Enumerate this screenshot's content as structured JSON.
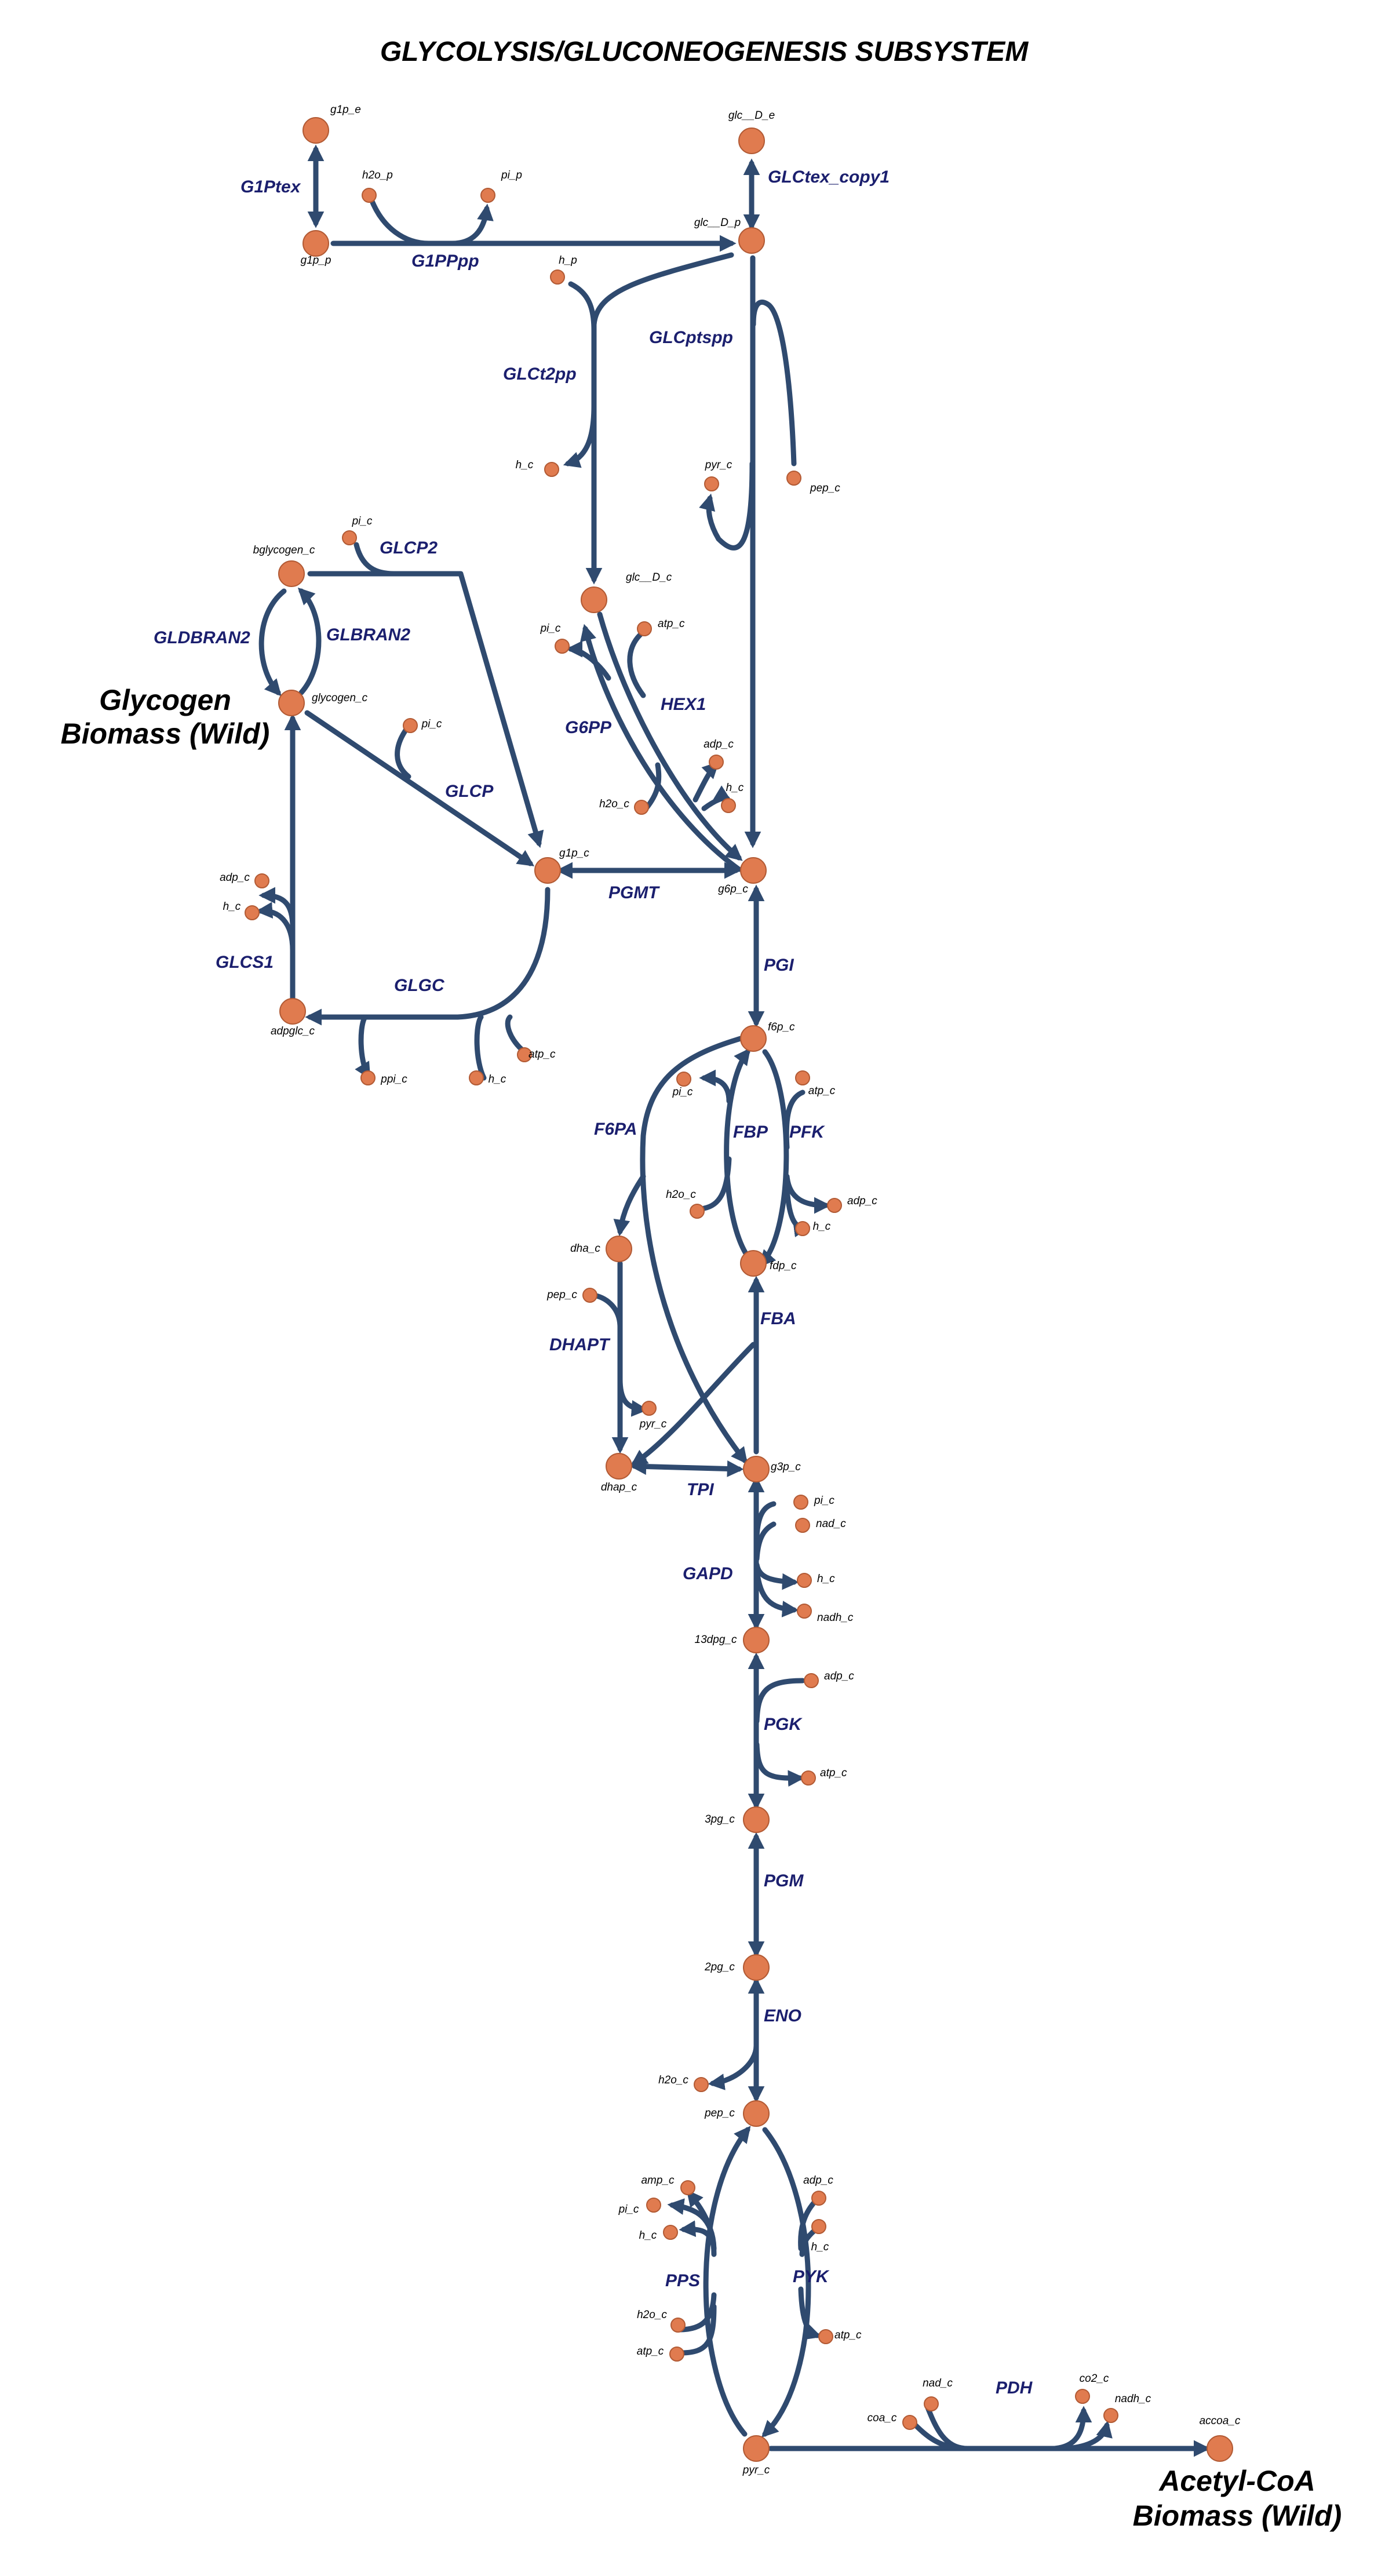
{
  "title": "GLYCOLYSIS/GLUCONEOGENESIS SUBSYSTEM",
  "annotations": {
    "glycogen_line1": "Glycogen",
    "glycogen_line2": "Biomass (Wild)",
    "accoa_line1": "Acetyl-CoA",
    "accoa_line2": "Biomass (Wild)"
  },
  "colors": {
    "edge": "#2f4a6f",
    "node": "#e07b4f",
    "reaction_label": "#1b1f6e"
  },
  "metabolites": {
    "g1p_e": "g1p_e",
    "g1p_p": "g1p_p",
    "h2o_p": "h2o_p",
    "pi_p": "pi_p",
    "glc_D_e": "glc__D_e",
    "glc_D_p": "glc__D_p",
    "h_p": "h_p",
    "h_c_1": "h_c",
    "pyr_c_1": "pyr_c",
    "pep_c_1": "pep_c",
    "pi_c_1": "pi_c",
    "bglycogen_c": "bglycogen_c",
    "glycogen_c": "glycogen_c",
    "pi_c_2": "pi_c",
    "glc_D_c": "glc__D_c",
    "pi_c_3": "pi_c",
    "atp_c_1": "atp_c",
    "adp_c_1": "adp_c",
    "h_c_2": "h_c",
    "h2o_c_1": "h2o_c",
    "g1p_c": "g1p_c",
    "g6p_c": "g6p_c",
    "adp_c_2": "adp_c",
    "h_c_3": "h_c",
    "adpglc_c": "adpglc_c",
    "ppi_c": "ppi_c",
    "h_c_4": "h_c",
    "atp_c_2": "atp_c",
    "f6p_c": "f6p_c",
    "pi_c_4": "pi_c",
    "atp_c_3": "atp_c",
    "h2o_c_2": "h2o_c",
    "adp_c_3": "adp_c",
    "h_c_5": "h_c",
    "dha_c": "dha_c",
    "fdp_c": "fdp_c",
    "pep_c_2": "pep_c",
    "pyr_c_2": "pyr_c",
    "dhap_c": "dhap_c",
    "g3p_c": "g3p_c",
    "pi_c_5": "pi_c",
    "nad_c_1": "nad_c",
    "h_c_6": "h_c",
    "nadh_c_1": "nadh_c",
    "13dpg_c": "13dpg_c",
    "adp_c_4": "adp_c",
    "atp_c_4": "atp_c",
    "3pg_c": "3pg_c",
    "2pg_c": "2pg_c",
    "h2o_c_3": "h2o_c",
    "pep_c_3": "pep_c",
    "amp_c": "amp_c",
    "pi_c_6": "pi_c",
    "h_c_7": "h_c",
    "adp_c_5": "adp_c",
    "h_c_8": "h_c",
    "h2o_c_4": "h2o_c",
    "atp_c_5": "atp_c",
    "atp_c_6": "atp_c",
    "pyr_c_3": "pyr_c",
    "nad_c_2": "nad_c",
    "coa_c": "coa_c",
    "co2_c": "co2_c",
    "nadh_c_2": "nadh_c",
    "accoa_c": "accoa_c"
  },
  "reactions": {
    "G1Ptex": "G1Ptex",
    "G1PPpp": "G1PPpp",
    "GLCtex_copy1": "GLCtex_copy1",
    "GLCptspp": "GLCptspp",
    "GLCt2pp": "GLCt2pp",
    "GLCP2": "GLCP2",
    "GLDBRAN2": "GLDBRAN2",
    "GLBRAN2": "GLBRAN2",
    "HEX1": "HEX1",
    "G6PP": "G6PP",
    "GLCP": "GLCP",
    "PGMT": "PGMT",
    "GLCS1": "GLCS1",
    "GLGC": "GLGC",
    "PGI": "PGI",
    "F6PA": "F6PA",
    "FBP": "FBP",
    "PFK": "PFK",
    "DHAPT": "DHAPT",
    "FBA": "FBA",
    "TPI": "TPI",
    "GAPD": "GAPD",
    "PGK": "PGK",
    "PGM": "PGM",
    "ENO": "ENO",
    "PPS": "PPS",
    "PYK": "PYK",
    "PDH": "PDH"
  }
}
